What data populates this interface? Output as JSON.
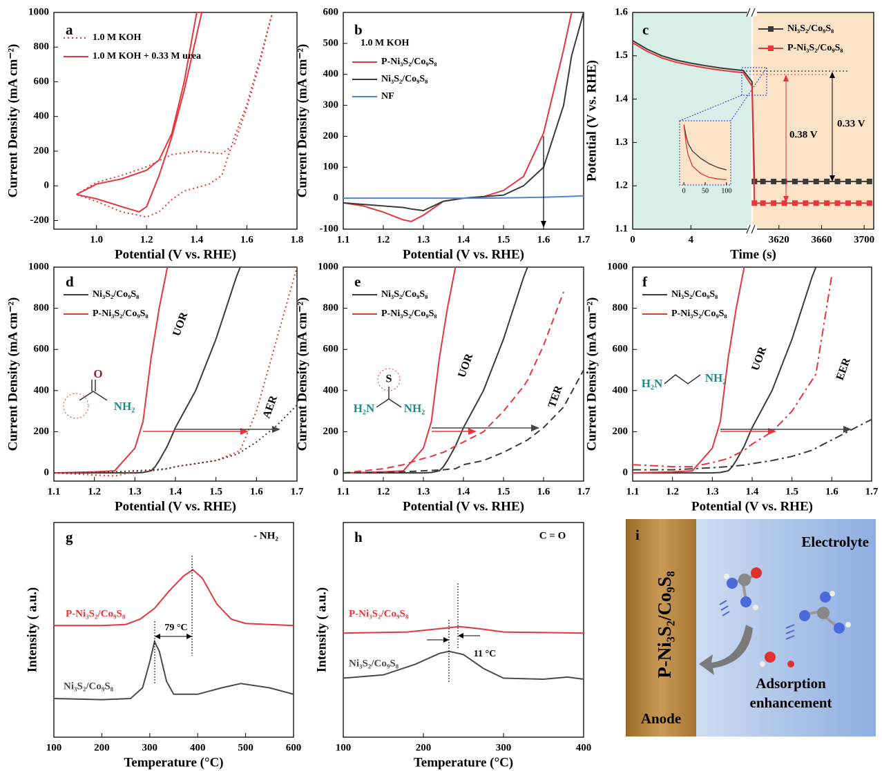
{
  "chart_data": [
    {
      "type": "line",
      "panel_label": "a",
      "x_label": "Potential (V vs. RHE)",
      "y_label": "Current Density (mA cm⁻²)",
      "xlim": [
        0.83,
        1.8
      ],
      "xticks": [
        {
          "value": 1,
          "label": "1.0"
        },
        1.2,
        1.4,
        1.6,
        1.8
      ],
      "ylim": [
        -250,
        1000
      ],
      "yticks": [
        -200,
        0,
        200,
        400,
        600,
        800,
        1000
      ],
      "series": [
        {
          "name": "1.0 M KOH",
          "color": "#e8343a",
          "dash": "dotted",
          "x": [
            0.92,
            1.0,
            1.1,
            1.2,
            1.3,
            1.4,
            1.5,
            1.55,
            1.6,
            1.65,
            1.7,
            1.65,
            1.6,
            1.55,
            1.5,
            1.45,
            1.4,
            1.35,
            1.3,
            1.25,
            1.2,
            1.1,
            1.0,
            0.92
          ],
          "values": [
            -50,
            20,
            60,
            110,
            180,
            200,
            185,
            240,
            450,
            700,
            990,
            720,
            470,
            280,
            60,
            10,
            -10,
            -30,
            -80,
            -150,
            -180,
            -150,
            -90,
            -50
          ]
        },
        {
          "name": "1.0 M KOH + 0.33 M urea",
          "color": "#e8343a",
          "dash": "solid",
          "x": [
            0.92,
            1.0,
            1.1,
            1.2,
            1.25,
            1.3,
            1.35,
            1.4,
            1.42,
            1.35,
            1.3,
            1.25,
            1.2,
            1.17,
            1.1,
            1.0,
            0.92
          ],
          "values": [
            -50,
            10,
            40,
            90,
            150,
            300,
            600,
            1000,
            1000,
            550,
            280,
            60,
            -120,
            -150,
            -120,
            -75,
            -50
          ]
        }
      ]
    },
    {
      "type": "line",
      "panel_label": "b",
      "x_label": "Potential (V vs. RHE)",
      "y_label": "Current Density (mA cm⁻²)",
      "legend_title": "1.0 M KOH",
      "xlim": [
        1.1,
        1.7
      ],
      "xticks": [
        1.1,
        1.2,
        1.3,
        1.4,
        1.5,
        1.6,
        1.7
      ],
      "ylim": [
        -100,
        600
      ],
      "yticks": [
        -100,
        0,
        100,
        200,
        300,
        400,
        500,
        600
      ],
      "x": [
        1.1,
        1.15,
        1.2,
        1.25,
        1.27,
        1.3,
        1.35,
        1.4,
        1.45,
        1.5,
        1.55,
        1.6,
        1.65,
        1.67,
        1.7
      ],
      "series": [
        {
          "name": "P-Ni₃S₂/Co₉S₈",
          "color": "#e8343a",
          "dash": "solid",
          "values": [
            -15,
            -25,
            -45,
            -70,
            -75,
            -55,
            -10,
            0,
            5,
            25,
            70,
            210,
            480,
            600,
            null
          ]
        },
        {
          "name": "Ni₃S₂/Co₉S₈",
          "color": "#3a3a3a",
          "dash": "solid",
          "values": [
            -15,
            -20,
            -25,
            -30,
            -35,
            -40,
            -10,
            0,
            5,
            10,
            40,
            100,
            300,
            460,
            600
          ]
        },
        {
          "name": "NF",
          "color": "#4a86d8",
          "dash": "solid",
          "values": [
            0,
            0,
            0,
            0,
            0,
            0,
            0,
            0,
            0,
            1,
            2,
            3,
            5,
            6,
            8
          ]
        }
      ]
    },
    {
      "type": "line",
      "panel_label": "c",
      "x_label": "Time (s)",
      "y_label": "Potential (V vs. RHE)",
      "xlim": [
        0,
        3709
      ],
      "axis_break": [
        8.2,
        3596
      ],
      "xticks": [
        0,
        4,
        3620,
        3660,
        3700
      ],
      "ylim": [
        1.1,
        1.6
      ],
      "yticks": [
        1.1,
        1.2,
        1.3,
        1.4,
        1.5,
        1.6
      ],
      "x": [
        0,
        0.5,
        1,
        2,
        3,
        4,
        5,
        6,
        7,
        7.6,
        8.2,
        3597,
        3605,
        3615,
        3625,
        3635,
        3645,
        3655,
        3665,
        3675,
        3685,
        3695,
        3705
      ],
      "series": [
        {
          "name": "Ni₃S₂/Co₉S₈",
          "color": "#3a3a3a",
          "dash": "solid",
          "marker": "square",
          "values": [
            1.535,
            1.525,
            1.515,
            1.5,
            1.49,
            1.483,
            1.477,
            1.472,
            1.468,
            1.466,
            1.44,
            1.21,
            1.21,
            1.21,
            1.21,
            1.21,
            1.21,
            1.21,
            1.21,
            1.21,
            1.21,
            1.21,
            1.21
          ]
        },
        {
          "name": "P-Ni₃S₂/Co₉S₈",
          "color": "#e8343a",
          "dash": "solid",
          "marker": "square",
          "values": [
            1.53,
            1.52,
            1.51,
            1.495,
            1.485,
            1.478,
            1.472,
            1.467,
            1.463,
            1.461,
            1.43,
            1.16,
            1.16,
            1.16,
            1.16,
            1.16,
            1.16,
            1.16,
            1.16,
            1.16,
            1.16,
            1.16,
            1.16
          ]
        }
      ],
      "annotations": [
        {
          "text": "0.38 V",
          "color": "#000000"
        },
        {
          "text": "0.33 V",
          "color": "#000000"
        }
      ],
      "inset": {
        "xlim": [
          -10,
          110
        ],
        "xticks": [
          0,
          50,
          100
        ],
        "ylim": [
          1.45,
          1.535
        ],
        "x": [
          0,
          5,
          10,
          20,
          40,
          60,
          80,
          100
        ],
        "series": [
          {
            "color": "#3a3a3a",
            "values": [
              1.53,
              1.515,
              1.505,
              1.495,
              1.485,
              1.478,
              1.473,
              1.47
            ]
          },
          {
            "color": "#e8343a",
            "values": [
              1.53,
              1.505,
              1.49,
              1.475,
              1.465,
              1.46,
              1.458,
              1.457
            ]
          }
        ]
      }
    },
    {
      "type": "line",
      "panel_label": "d",
      "x_label": "Potential (V vs. RHE)",
      "y_label": "Current Density (mA cm⁻²)",
      "xlim": [
        1.1,
        1.7
      ],
      "xticks": [
        1.1,
        1.2,
        1.3,
        1.4,
        1.5,
        1.6,
        1.7
      ],
      "ylim": [
        -40,
        1000
      ],
      "yticks": [
        0,
        200,
        400,
        600,
        800,
        1000
      ],
      "x": [
        1.1,
        1.2,
        1.25,
        1.3,
        1.32,
        1.34,
        1.35,
        1.36,
        1.38,
        1.4,
        1.45,
        1.5,
        1.55,
        1.56,
        1.6,
        1.65,
        1.7
      ],
      "series": [
        {
          "name": "Ni₃S₂/Co₉S₈",
          "color": "#3a3a3a",
          "dash": "solid",
          "values": [
            0,
            0,
            0,
            0,
            2,
            10,
            30,
            60,
            130,
            220,
            400,
            650,
            950,
            1000,
            null,
            null,
            null
          ]
        },
        {
          "name": "P-Ni₃S₂/Co₉S₈",
          "color": "#e8343a",
          "dash": "solid",
          "values": [
            0,
            5,
            10,
            120,
            250,
            560,
            680,
            800,
            1000,
            null,
            null,
            null,
            null,
            null,
            null,
            null,
            null
          ]
        },
        {
          "color": "#e8343a",
          "dash": "dotted",
          "values": [
            0,
            -10,
            -15,
            5,
            8,
            10,
            12,
            14,
            20,
            30,
            45,
            60,
            100,
            110,
            300,
            650,
            1000
          ]
        },
        {
          "color": "#3a3a3a",
          "dash": "dotted",
          "values": [
            0,
            2,
            5,
            10,
            12,
            14,
            15,
            17,
            20,
            30,
            45,
            60,
            90,
            100,
            150,
            230,
            330
          ]
        }
      ],
      "annotations": [
        {
          "text": "UOR",
          "color": "#000000"
        },
        {
          "text": "AER",
          "color": "#000000"
        },
        {
          "text": "O",
          "color": "#8b2a2a"
        },
        {
          "text": "NH₂",
          "color": "#1f8a8a"
        }
      ]
    },
    {
      "type": "line",
      "panel_label": "e",
      "x_label": "Potential (V vs. RHE)",
      "y_label": "Current Density (mA cm⁻²)",
      "xlim": [
        1.1,
        1.7
      ],
      "xticks": [
        1.1,
        1.2,
        1.3,
        1.4,
        1.5,
        1.6,
        1.7
      ],
      "ylim": [
        -40,
        1000
      ],
      "yticks": [
        0,
        200,
        400,
        600,
        800,
        1000
      ],
      "x": [
        1.1,
        1.2,
        1.25,
        1.3,
        1.32,
        1.34,
        1.35,
        1.36,
        1.38,
        1.4,
        1.45,
        1.5,
        1.55,
        1.56,
        1.6,
        1.65,
        1.7
      ],
      "series": [
        {
          "name": "Ni₃S₂/Co₉S₈",
          "color": "#3a3a3a",
          "dash": "solid",
          "values": [
            0,
            0,
            0,
            0,
            2,
            10,
            30,
            60,
            130,
            220,
            400,
            650,
            950,
            1000,
            null,
            null,
            null
          ]
        },
        {
          "name": "P-Ni₃S₂/Co₉S₈",
          "color": "#e8343a",
          "dash": "solid",
          "values": [
            0,
            5,
            10,
            120,
            250,
            560,
            680,
            800,
            1000,
            null,
            null,
            null,
            null,
            null,
            null,
            null,
            null
          ]
        },
        {
          "color": "#e8343a",
          "dash": "dashed",
          "values": [
            0,
            20,
            40,
            70,
            80,
            95,
            100,
            110,
            130,
            150,
            200,
            300,
            420,
            450,
            620,
            880,
            null
          ]
        },
        {
          "color": "#3a3a3a",
          "dash": "dashed",
          "values": [
            0,
            3,
            5,
            10,
            12,
            14,
            15,
            17,
            20,
            40,
            60,
            100,
            150,
            160,
            220,
            320,
            500
          ]
        }
      ],
      "annotations": [
        {
          "text": "UOR",
          "color": "#000000"
        },
        {
          "text": "TER",
          "color": "#000000"
        },
        {
          "text": "S",
          "color": "#000000"
        },
        {
          "text": "H₂N",
          "color": "#1f8a8a"
        },
        {
          "text": "NH₂",
          "color": "#1f8a8a"
        }
      ]
    },
    {
      "type": "line",
      "panel_label": "f",
      "x_label": "Potential (V vs. RHE)",
      "y_label": "Current Density (mA cm⁻²)",
      "xlim": [
        1.1,
        1.7
      ],
      "xticks": [
        1.1,
        1.2,
        1.3,
        1.4,
        1.5,
        1.6,
        1.7
      ],
      "ylim": [
        -40,
        1000
      ],
      "yticks": [
        0,
        200,
        400,
        600,
        800,
        1000
      ],
      "x": [
        1.1,
        1.2,
        1.25,
        1.3,
        1.32,
        1.34,
        1.35,
        1.36,
        1.38,
        1.4,
        1.45,
        1.5,
        1.55,
        1.56,
        1.6,
        1.65,
        1.7
      ],
      "series": [
        {
          "name": "Ni₃S₂/Co₉S₈",
          "color": "#3a3a3a",
          "dash": "solid",
          "values": [
            0,
            0,
            0,
            0,
            2,
            10,
            30,
            60,
            130,
            220,
            400,
            650,
            950,
            1000,
            null,
            null,
            null
          ]
        },
        {
          "name": "P-Ni₃S₂/Co₉S₈",
          "color": "#e8343a",
          "dash": "solid",
          "values": [
            0,
            5,
            10,
            120,
            250,
            560,
            680,
            800,
            1000,
            null,
            null,
            null,
            null,
            null,
            null,
            null,
            null
          ]
        },
        {
          "color": "#e8343a",
          "dash": "dashdot",
          "values": [
            40,
            30,
            30,
            50,
            60,
            70,
            80,
            90,
            110,
            140,
            200,
            300,
            450,
            480,
            960,
            null,
            null
          ]
        },
        {
          "color": "#3a3a3a",
          "dash": "dashdot",
          "values": [
            15,
            15,
            20,
            25,
            28,
            30,
            32,
            34,
            38,
            45,
            60,
            80,
            110,
            120,
            160,
            210,
            260
          ]
        }
      ],
      "annotations": [
        {
          "text": "UOR",
          "color": "#000000"
        },
        {
          "text": "EER",
          "color": "#000000"
        },
        {
          "text": "H₂N",
          "color": "#1f8a8a"
        },
        {
          "text": "NH₂",
          "color": "#1f8a8a"
        }
      ]
    },
    {
      "type": "line",
      "panel_label": "g",
      "x_label": "Temperature (°C)",
      "y_label": "Intensity ( a.u.)",
      "legend": "inline",
      "xlim": [
        100,
        600
      ],
      "xticks": [
        100,
        200,
        300,
        400,
        500,
        600
      ],
      "ylim": [
        0,
        10
      ],
      "series": [
        {
          "name": "P-Ni₃S₂/Co₉S₈",
          "color": "#e8343a",
          "dash": "solid",
          "x": [
            100,
            200,
            250,
            280,
            310,
            340,
            370,
            390,
            410,
            440,
            470,
            500,
            600
          ],
          "values": [
            5.2,
            5.2,
            5.25,
            5.5,
            6.0,
            6.8,
            7.5,
            7.8,
            7.4,
            6.2,
            5.5,
            5.3,
            5.2
          ]
        },
        {
          "name": "Ni₃S₂/Co₉S₈",
          "color": "#4a4a4a",
          "dash": "solid",
          "x": [
            100,
            200,
            260,
            285,
            300,
            310,
            320,
            335,
            350,
            400,
            450,
            490,
            550,
            600
          ],
          "values": [
            1.8,
            1.75,
            1.8,
            2.3,
            3.5,
            4.45,
            4.0,
            2.6,
            2.0,
            2.0,
            2.3,
            2.5,
            2.3,
            2.0
          ]
        }
      ],
      "annotations": [
        {
          "text": "- NH₂",
          "color": "#000000"
        },
        {
          "text": "79 °C",
          "color": "#000000"
        }
      ]
    },
    {
      "type": "line",
      "panel_label": "h",
      "x_label": "Temperature (°C)",
      "y_label": "Intensity ( a.u.)",
      "legend": "inline",
      "xlim": [
        100,
        400
      ],
      "xticks": [
        100,
        200,
        300,
        400
      ],
      "ylim": [
        0,
        10
      ],
      "series": [
        {
          "name": "P-Ni₃S₂/Co₉S₈",
          "color": "#e8343a",
          "dash": "solid",
          "x": [
            100,
            180,
            220,
            245,
            270,
            300,
            400
          ],
          "values": [
            4.85,
            4.9,
            5.05,
            5.15,
            5.05,
            4.9,
            4.85
          ]
        },
        {
          "name": "Ni₃S₂/Co₉S₈",
          "color": "#4a4a4a",
          "dash": "solid",
          "x": [
            100,
            150,
            190,
            220,
            232,
            250,
            275,
            300,
            350,
            380,
            400
          ],
          "values": [
            2.75,
            2.9,
            3.4,
            3.9,
            4.0,
            3.85,
            3.2,
            2.75,
            2.7,
            2.8,
            2.7
          ]
        }
      ],
      "annotations": [
        {
          "text": "C = O",
          "color": "#000000"
        },
        {
          "text": "11 °C",
          "color": "#000000"
        }
      ]
    }
  ],
  "illustration": {
    "panel_label": "i",
    "electrode": "P-Ni₃S₂/Co₉S₈",
    "electrolyte": "Electrolyte",
    "caption": [
      "Adsorption",
      "enhancement"
    ],
    "anode": "Anode"
  }
}
